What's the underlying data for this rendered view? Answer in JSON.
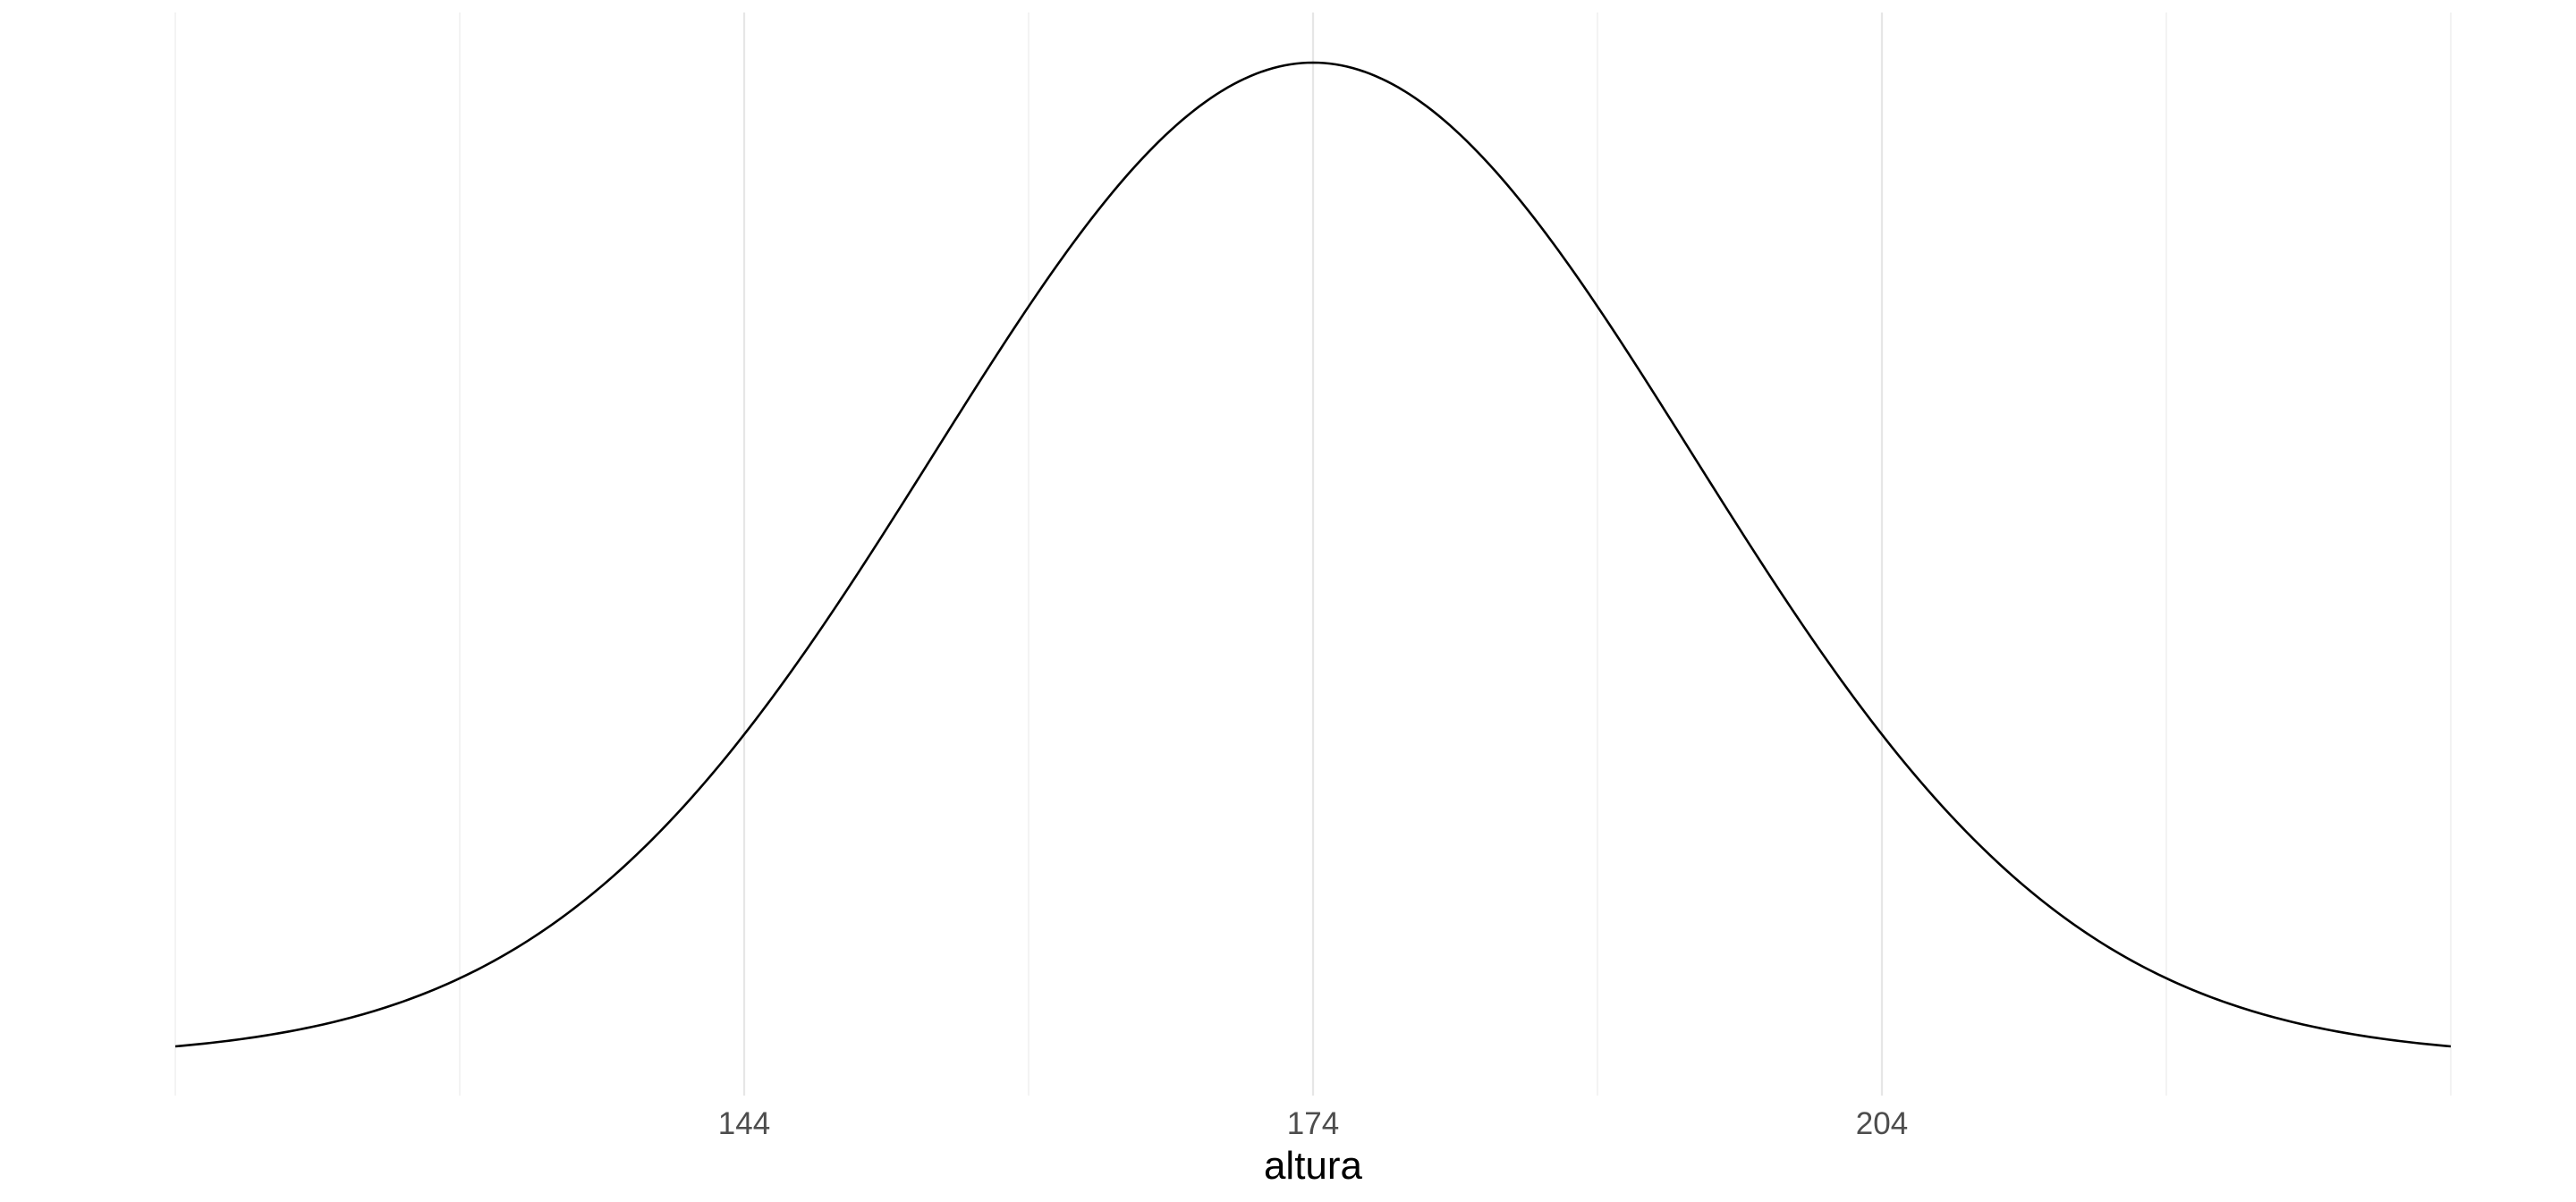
{
  "chart_data": {
    "type": "line",
    "title": "",
    "xlabel": "altura",
    "ylabel": "",
    "xlim": [
      114,
      234
    ],
    "x_ticks": [
      144,
      174,
      204
    ],
    "x_tick_labels": [
      "144",
      "174",
      "204"
    ],
    "x_minor_gridlines": [
      114,
      129,
      159,
      189,
      219,
      234
    ],
    "show_y_axis": false,
    "grid": "vertical",
    "series": [
      {
        "color": "#000000",
        "distribution": "normal density",
        "mean": 174,
        "sd": 20,
        "x_range": [
          114,
          234
        ]
      }
    ]
  }
}
